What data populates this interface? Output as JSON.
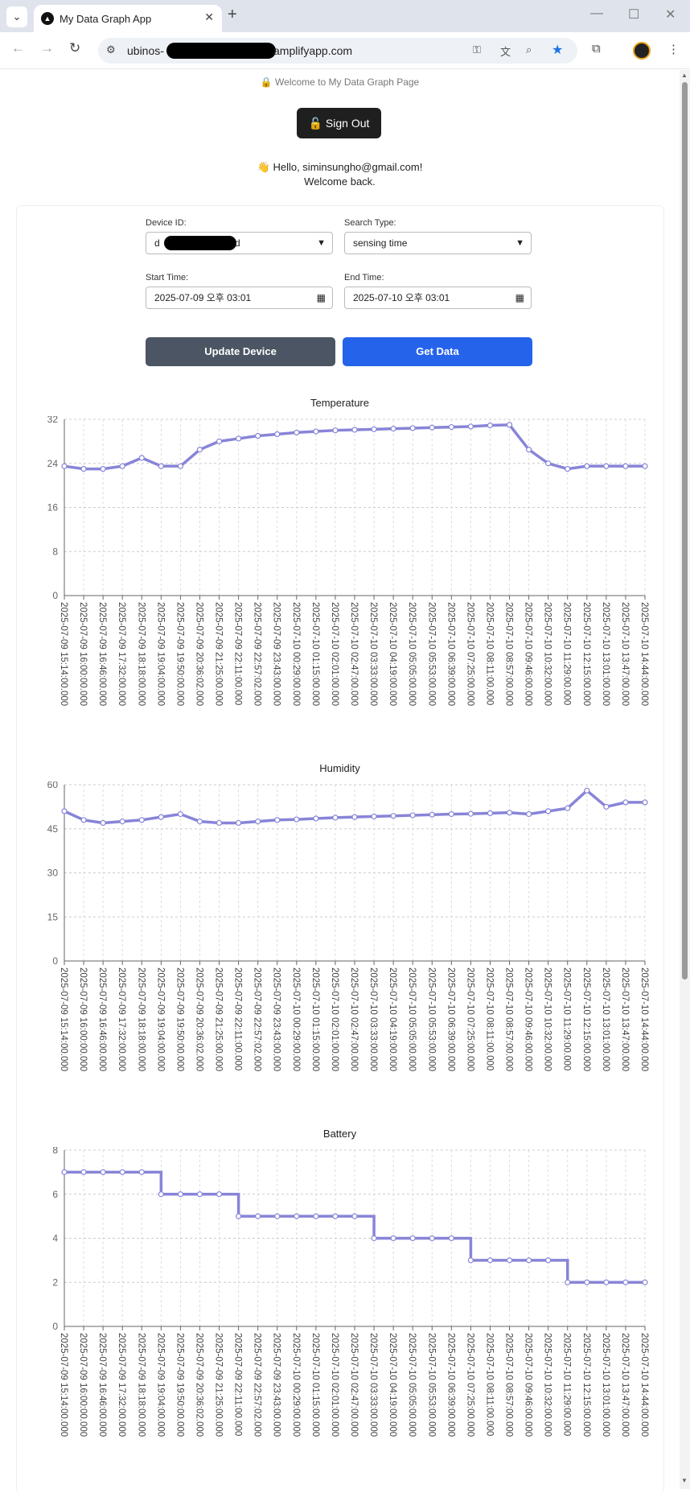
{
  "browser": {
    "tab_title": "My Data Graph App",
    "url_prefix": "ubinos-",
    "url_suffix": "amplifyapp.com"
  },
  "page": {
    "welcome_text": "🔒 Welcome to My Data Graph Page",
    "sign_out_label": "🔓 Sign Out",
    "hello_text": "👋 Hello, siminsungho@gmail.com!",
    "welcome_back_text": "Welcome back."
  },
  "form": {
    "device_id_label": "Device ID:",
    "device_id_value": "d",
    "device_id_suffix": "d",
    "search_type_label": "Search Type:",
    "search_type_value": "sensing time",
    "start_time_label": "Start Time:",
    "start_time_value": "2025-07-09 오후 03:01",
    "end_time_label": "End Time:",
    "end_time_value": "2025-07-10 오후 03:01",
    "update_button_label": "Update Device",
    "get_data_button_label": "Get Data"
  },
  "colors": {
    "series": "#8884d8",
    "get_data": "#2563eb",
    "update": "#4b5563"
  },
  "chart_data": [
    {
      "type": "line",
      "title": "Temperature",
      "x": [
        "2025-07-09 15:14:00.000",
        "2025-07-09 16:00:00.000",
        "2025-07-09 16:46:00.000",
        "2025-07-09 17:32:00.000",
        "2025-07-09 18:18:00.000",
        "2025-07-09 19:04:00.000",
        "2025-07-09 19:50:00.000",
        "2025-07-09 20:36:02.000",
        "2025-07-09 21:25:00.000",
        "2025-07-09 22:11:00.000",
        "2025-07-09 22:57:02.000",
        "2025-07-09 23:43:00.000",
        "2025-07-10 00:29:00.000",
        "2025-07-10 01:15:00.000",
        "2025-07-10 02:01:00.000",
        "2025-07-10 02:47:00.000",
        "2025-07-10 03:33:00.000",
        "2025-07-10 04:19:00.000",
        "2025-07-10 05:05:00.000",
        "2025-07-10 05:53:00.000",
        "2025-07-10 06:39:00.000",
        "2025-07-10 07:25:00.000",
        "2025-07-10 08:11:00.000",
        "2025-07-10 08:57:00.000",
        "2025-07-10 09:46:00.000",
        "2025-07-10 10:32:00.000",
        "2025-07-10 11:29:00.000",
        "2025-07-10 12:15:00.000",
        "2025-07-10 13:01:00.000",
        "2025-07-10 13:47:00.000",
        "2025-07-10 14:44:00.000"
      ],
      "values": [
        23.5,
        23.0,
        23.0,
        23.5,
        25.0,
        23.5,
        23.5,
        26.5,
        28.0,
        28.5,
        29.0,
        29.3,
        29.6,
        29.8,
        30.0,
        30.1,
        30.2,
        30.3,
        30.4,
        30.5,
        30.6,
        30.7,
        30.9,
        31.0,
        26.5,
        24.0,
        23.0,
        23.5,
        23.5,
        23.5,
        23.5
      ],
      "ylim": [
        0,
        32
      ],
      "yticks": [
        0,
        8,
        16,
        24,
        32
      ]
    },
    {
      "type": "line",
      "title": "Humidity",
      "x": [
        "2025-07-09 15:14:00.000",
        "2025-07-09 16:00:00.000",
        "2025-07-09 16:46:00.000",
        "2025-07-09 17:32:00.000",
        "2025-07-09 18:18:00.000",
        "2025-07-09 19:04:00.000",
        "2025-07-09 19:50:00.000",
        "2025-07-09 20:36:02.000",
        "2025-07-09 21:25:00.000",
        "2025-07-09 22:11:00.000",
        "2025-07-09 22:57:02.000",
        "2025-07-09 23:43:00.000",
        "2025-07-10 00:29:00.000",
        "2025-07-10 01:15:00.000",
        "2025-07-10 02:01:00.000",
        "2025-07-10 02:47:00.000",
        "2025-07-10 03:33:00.000",
        "2025-07-10 04:19:00.000",
        "2025-07-10 05:05:00.000",
        "2025-07-10 05:53:00.000",
        "2025-07-10 06:39:00.000",
        "2025-07-10 07:25:00.000",
        "2025-07-10 08:11:00.000",
        "2025-07-10 08:57:00.000",
        "2025-07-10 09:46:00.000",
        "2025-07-10 10:32:00.000",
        "2025-07-10 11:29:00.000",
        "2025-07-10 12:15:00.000",
        "2025-07-10 13:01:00.000",
        "2025-07-10 13:47:00.000",
        "2025-07-10 14:44:00.000"
      ],
      "values": [
        51.0,
        48.0,
        47.0,
        47.5,
        48.0,
        49.0,
        50.0,
        47.5,
        47.0,
        47.0,
        47.5,
        48.0,
        48.2,
        48.5,
        48.8,
        49.0,
        49.2,
        49.4,
        49.6,
        49.8,
        50.0,
        50.1,
        50.3,
        50.5,
        50.0,
        51.0,
        52.0,
        58.0,
        52.5,
        54.0,
        54.0
      ],
      "ylim": [
        0,
        60
      ],
      "yticks": [
        0,
        15,
        30,
        45,
        60
      ]
    },
    {
      "type": "line",
      "title": "Battery",
      "x": [
        "2025-07-09 15:14:00.000",
        "2025-07-09 16:00:00.000",
        "2025-07-09 16:46:00.000",
        "2025-07-09 17:32:00.000",
        "2025-07-09 18:18:00.000",
        "2025-07-09 19:04:00.000",
        "2025-07-09 19:50:00.000",
        "2025-07-09 20:36:02.000",
        "2025-07-09 21:25:00.000",
        "2025-07-09 22:11:00.000",
        "2025-07-09 22:57:02.000",
        "2025-07-09 23:43:00.000",
        "2025-07-10 00:29:00.000",
        "2025-07-10 01:15:00.000",
        "2025-07-10 02:01:00.000",
        "2025-07-10 02:47:00.000",
        "2025-07-10 03:33:00.000",
        "2025-07-10 04:19:00.000",
        "2025-07-10 05:05:00.000",
        "2025-07-10 05:53:00.000",
        "2025-07-10 06:39:00.000",
        "2025-07-10 07:25:00.000",
        "2025-07-10 08:11:00.000",
        "2025-07-10 08:57:00.000",
        "2025-07-10 09:46:00.000",
        "2025-07-10 10:32:00.000",
        "2025-07-10 11:29:00.000",
        "2025-07-10 12:15:00.000",
        "2025-07-10 13:01:00.000",
        "2025-07-10 13:47:00.000",
        "2025-07-10 14:44:00.000"
      ],
      "values": [
        7,
        7,
        7,
        7,
        7,
        6,
        6,
        6,
        6,
        5,
        5,
        5,
        5,
        5,
        5,
        5,
        4,
        4,
        4,
        4,
        4,
        3,
        3,
        3,
        3,
        3,
        2,
        2,
        2,
        2,
        2
      ],
      "ylim": [
        0,
        8
      ],
      "yticks": [
        0,
        2,
        4,
        6,
        8
      ]
    }
  ]
}
